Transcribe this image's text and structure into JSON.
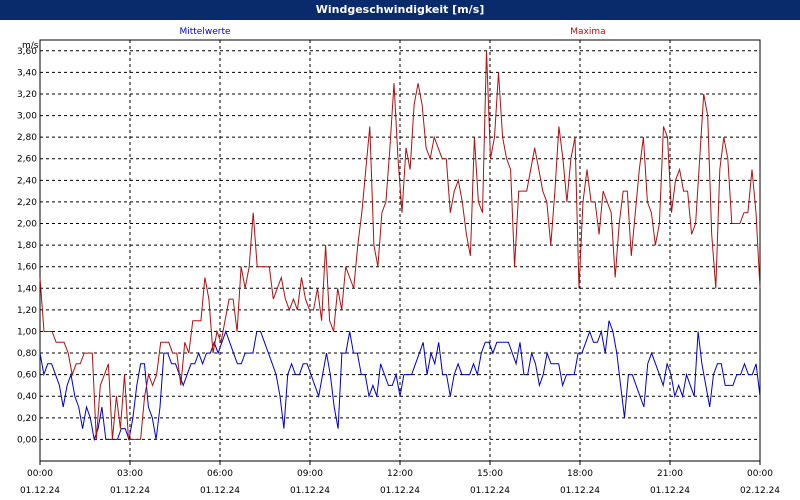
{
  "window": {
    "title": "Windgeschwindigkeit [m/s]"
  },
  "chart_data": {
    "type": "line",
    "title": "Windgeschwindigkeit [m/s]",
    "ylabel": "m/s",
    "ylim": [
      -0.2,
      3.7
    ],
    "yticks": [
      "0,00",
      "0,20",
      "0,40",
      "0,60",
      "0,80",
      "1,00",
      "1,20",
      "1,40",
      "1,60",
      "1,80",
      "2,00",
      "2,20",
      "2,40",
      "2,60",
      "2,80",
      "3,00",
      "3,20",
      "3,40",
      "3,60"
    ],
    "xticks": [
      {
        "time": "00:00",
        "date": "01.12.24"
      },
      {
        "time": "03:00",
        "date": "01.12.24"
      },
      {
        "time": "06:00",
        "date": "01.12.24"
      },
      {
        "time": "09:00",
        "date": "01.12.24"
      },
      {
        "time": "12:00",
        "date": "01.12.24"
      },
      {
        "time": "15:00",
        "date": "01.12.24"
      },
      {
        "time": "18:00",
        "date": "01.12.24"
      },
      {
        "time": "21:00",
        "date": "01.12.24"
      },
      {
        "time": "00:00",
        "date": "02.12.24"
      }
    ],
    "grid": true,
    "series": [
      {
        "name": "Mittelwerte",
        "color": "#0000c8",
        "values": [
          0.8,
          0.6,
          0.7,
          0.7,
          0.6,
          0.5,
          0.3,
          0.5,
          0.6,
          0.4,
          0.3,
          0.1,
          0.3,
          0.2,
          0,
          0.1,
          0.3,
          0,
          0,
          0,
          0,
          0.1,
          0.1,
          0,
          0.2,
          0.5,
          0.7,
          0.7,
          0.3,
          0.2,
          0,
          0.3,
          0.8,
          0.8,
          0.7,
          0.7,
          0.6,
          0.5,
          0.6,
          0.7,
          0.7,
          0.8,
          0.7,
          0.8,
          0.8,
          0.9,
          0.8,
          0.9,
          1,
          0.9,
          0.8,
          0.7,
          0.7,
          0.8,
          0.8,
          0.8,
          1,
          1,
          0.9,
          0.8,
          0.7,
          0.6,
          0.4,
          0.1,
          0.6,
          0.7,
          0.6,
          0.6,
          0.7,
          0.7,
          0.6,
          0.5,
          0.4,
          0.6,
          0.8,
          0.6,
          0.3,
          0.1,
          0.8,
          0.8,
          1,
          0.8,
          0.8,
          0.6,
          0.6,
          0.4,
          0.5,
          0.4,
          0.7,
          0.6,
          0.5,
          0.5,
          0.6,
          0.4,
          0.6,
          0.6,
          0.6,
          0.7,
          0.8,
          0.9,
          0.6,
          0.8,
          0.7,
          0.9,
          0.6,
          0.6,
          0.4,
          0.6,
          0.7,
          0.6,
          0.6,
          0.6,
          0.7,
          0.6,
          0.8,
          0.9,
          0.9,
          0.8,
          0.9,
          0.9,
          0.9,
          0.9,
          0.8,
          0.7,
          0.9,
          0.6,
          0.6,
          0.8,
          0.7,
          0.5,
          0.6,
          0.8,
          0.7,
          0.7,
          0.7,
          0.5,
          0.6,
          0.6,
          0.6,
          0.8,
          0.8,
          0.9,
          1,
          0.9,
          0.9,
          1,
          0.8,
          1.1,
          1,
          0.8,
          0.5,
          0.2,
          0.6,
          0.6,
          0.5,
          0.4,
          0.3,
          0.7,
          0.8,
          0.7,
          0.6,
          0.5,
          0.7,
          0.6,
          0.4,
          0.5,
          0.4,
          0.6,
          0.5,
          0.4,
          1,
          0.7,
          0.5,
          0.3,
          0.6,
          0.7,
          0.7,
          0.5,
          0.5,
          0.5,
          0.6,
          0.6,
          0.7,
          0.6,
          0.6,
          0.7,
          0.4
        ]
      },
      {
        "name": "Maxima",
        "color": "#b01010",
        "values": [
          1.5,
          1,
          1,
          1,
          0.9,
          0.9,
          0.9,
          0.8,
          0.6,
          0.7,
          0.7,
          0.8,
          0.8,
          0.8,
          0,
          0.5,
          0.6,
          0.7,
          0,
          0.4,
          0.1,
          0.6,
          0,
          0,
          0,
          0,
          0.4,
          0.6,
          0.5,
          0.6,
          0.9,
          0.9,
          0.9,
          0.8,
          0.8,
          0.5,
          0.9,
          0.8,
          1.1,
          1.1,
          1.1,
          1.5,
          1.3,
          0.8,
          1,
          0.9,
          1.1,
          1.3,
          1.3,
          1,
          1.6,
          1.4,
          1.6,
          2.1,
          1.6,
          1.6,
          1.6,
          1.6,
          1.3,
          1.4,
          1.5,
          1.3,
          1.2,
          1.3,
          1.2,
          1.5,
          1.3,
          1.2,
          1.2,
          1.4,
          1.1,
          1.8,
          1.1,
          1,
          1.4,
          1.2,
          1.6,
          1.5,
          1.4,
          1.8,
          2.1,
          2.5,
          2.9,
          1.8,
          1.6,
          2.1,
          2.2,
          2.7,
          3.3,
          2.6,
          2.1,
          2.7,
          2.5,
          3.1,
          3.3,
          3.1,
          2.7,
          2.6,
          2.8,
          2.7,
          2.6,
          2.6,
          2.1,
          2.3,
          2.4,
          2.2,
          1.9,
          1.7,
          2.8,
          2.2,
          2.1,
          3.6,
          2.6,
          2.8,
          3.4,
          2.8,
          2.6,
          2.5,
          1.6,
          2.3,
          2.3,
          2.3,
          2.5,
          2.7,
          2.5,
          2.3,
          2.2,
          1.8,
          2.3,
          2.9,
          2.6,
          2.2,
          2.6,
          2.8,
          1.4,
          2.2,
          2.5,
          2.2,
          2.2,
          1.9,
          2.3,
          2.2,
          2.1,
          1.5,
          2,
          2.3,
          2.3,
          1.7,
          2.1,
          2.5,
          2.8,
          2.2,
          2.1,
          1.8,
          2,
          2.9,
          2.8,
          2.1,
          2.4,
          2.5,
          2.3,
          2.3,
          1.9,
          2,
          2.6,
          3.2,
          3,
          1.9,
          1.4,
          2.5,
          2.8,
          2.6,
          2,
          2,
          2,
          2.1,
          2.1,
          2.5,
          2.1,
          1.4
        ]
      }
    ]
  }
}
